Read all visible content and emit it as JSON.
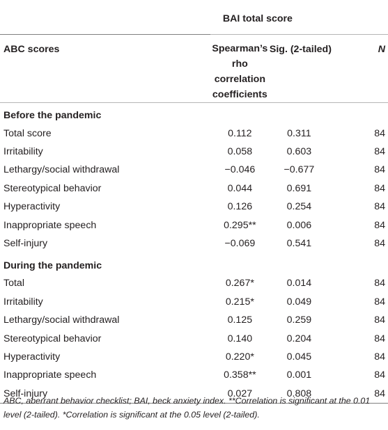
{
  "table": {
    "group_header": "BAI total score",
    "columns": [
      "ABC scores",
      "Spearman’s rho correlation coefficients",
      "Sig. (2-tailed)",
      "N"
    ],
    "sections": [
      {
        "title": "Before the pandemic",
        "rows": [
          {
            "label": "Total score",
            "rho": "0.112",
            "sig": "0.311",
            "n": "84"
          },
          {
            "label": "Irritability",
            "rho": "0.058",
            "sig": "0.603",
            "n": "84"
          },
          {
            "label": "Lethargy/social withdrawal",
            "rho": "−0.046",
            "sig": "−0.677",
            "n": "84"
          },
          {
            "label": "Stereotypical behavior",
            "rho": "0.044",
            "sig": "0.691",
            "n": "84"
          },
          {
            "label": "Hyperactivity",
            "rho": "0.126",
            "sig": "0.254",
            "n": "84"
          },
          {
            "label": "Inappropriate speech",
            "rho": "0.295**",
            "sig": "0.006",
            "n": "84"
          },
          {
            "label": "Self-injury",
            "rho": "−0.069",
            "sig": "0.541",
            "n": "84"
          }
        ]
      },
      {
        "title": "During the pandemic",
        "rows": [
          {
            "label": "Total",
            "rho": "0.267*",
            "sig": "0.014",
            "n": "84"
          },
          {
            "label": "Irritability",
            "rho": "0.215*",
            "sig": "0.049",
            "n": "84"
          },
          {
            "label": "Lethargy/social withdrawal",
            "rho": "0.125",
            "sig": "0.259",
            "n": "84"
          },
          {
            "label": "Stereotypical behavior",
            "rho": "0.140",
            "sig": "0.204",
            "n": "84"
          },
          {
            "label": "Hyperactivity",
            "rho": "0.220*",
            "sig": "0.045",
            "n": "84"
          },
          {
            "label": "Inappropriate speech",
            "rho": "0.358**",
            "sig": "0.001",
            "n": "84"
          },
          {
            "label": "Self-injury",
            "rho": "0.027",
            "sig": "0.808",
            "n": "84"
          }
        ]
      }
    ]
  },
  "footnote": "ABC, aberrant behavior checklist; BAI, beck anxiety index. **Correlation is significant at the 0.01 level (2-tailed). *Correlation is significant at the 0.05 level (2-tailed)."
}
